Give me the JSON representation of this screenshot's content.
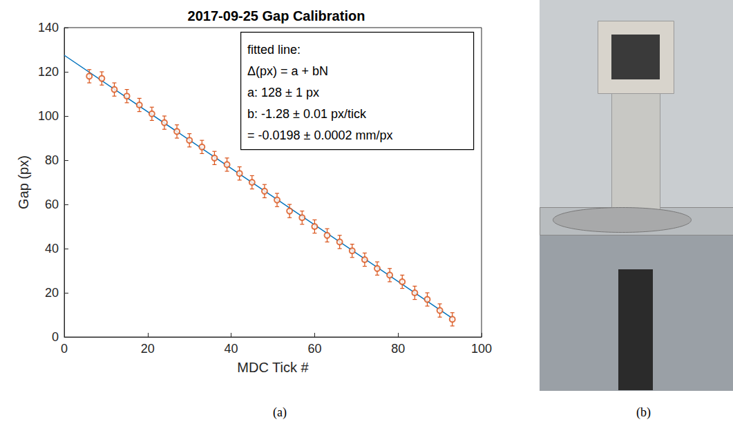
{
  "chart_data": {
    "type": "scatter",
    "title": "2017-09-25 Gap Calibration",
    "x_label": "MDC Tick #",
    "y_label": "Gap (px)",
    "xlim": [
      0,
      100
    ],
    "xticks": [
      0,
      20,
      40,
      60,
      80,
      100
    ],
    "ylim": [
      0,
      140
    ],
    "yticks": [
      0,
      20,
      40,
      60,
      80,
      100,
      120,
      140
    ],
    "grid": false,
    "annotation": [
      "fitted line:",
      "Δ(px) = a + bN",
      "a: 128 ± 1 px",
      "b: -1.28 ± 0.01 px/tick",
      "= -0.0198 ± 0.0002 mm/px"
    ],
    "panel_label": "(a)",
    "series": [
      {
        "type": "scatter",
        "color": "#D95319",
        "marker": "circle",
        "x": [
          6,
          9,
          12,
          15,
          18,
          21,
          24,
          27,
          30,
          33,
          36,
          39,
          42,
          45,
          48,
          51,
          54,
          57,
          60,
          63,
          66,
          69,
          72,
          75,
          78,
          81,
          84,
          87,
          90,
          93
        ],
        "values": [
          118,
          117,
          112,
          109,
          105,
          101,
          97,
          93,
          89,
          86,
          81,
          78,
          74,
          70,
          66,
          62,
          57,
          54,
          50,
          46,
          43,
          39,
          35,
          31,
          28,
          25,
          20,
          17,
          12,
          8
        ],
        "errors": [
          3,
          3,
          3,
          3,
          3,
          3,
          3,
          3,
          3,
          3,
          3,
          3,
          3,
          3,
          3,
          3,
          3,
          3,
          3,
          3,
          3,
          3,
          3,
          3,
          3,
          3,
          3,
          3,
          3,
          3
        ]
      },
      {
        "type": "line",
        "color": "#0072BD",
        "line_style": "solid",
        "x": [
          0,
          93
        ],
        "values": [
          127.5,
          8.5
        ]
      }
    ]
  },
  "photo_panel": {
    "label": "(b)"
  }
}
